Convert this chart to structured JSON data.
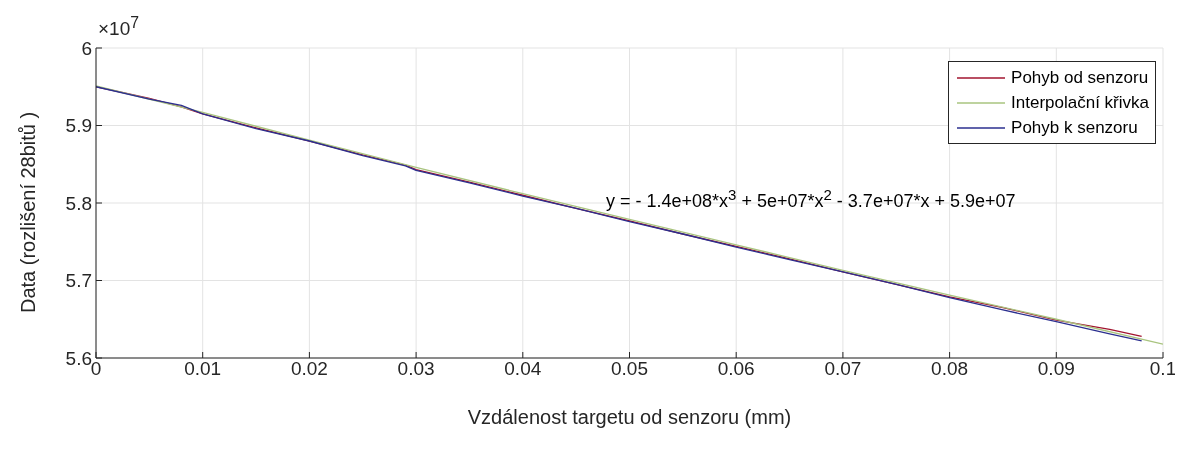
{
  "chart_data": {
    "type": "line",
    "xlabel": "Vzdálenost targetu od senzoru (mm)",
    "ylabel": "Data (rozlišení 28bitů )",
    "annotations": [
      "×10$^{7}$",
      "y = - 1.4e+08*x$^{3}$ + 5e+07*x$^{2}$ - 3.7e+07*x + 5.9e+07"
    ],
    "series": [
      {
        "name": "Pohyb od senzoru",
        "color": "#a2142f",
        "x": [
          0,
          0.005,
          0.008,
          0.01,
          0.015,
          0.02,
          0.025,
          0.029,
          0.03,
          0.035,
          0.04,
          0.045,
          0.05,
          0.055,
          0.06,
          0.065,
          0.07,
          0.075,
          0.08,
          0.085,
          0.09,
          0.095,
          0.098
        ],
        "values": [
          5.95,
          5.935,
          5.924,
          5.915,
          5.897,
          5.88,
          5.862,
          5.849,
          5.843,
          5.827,
          5.81,
          5.793,
          5.777,
          5.76,
          5.744,
          5.728,
          5.711,
          5.695,
          5.679,
          5.665,
          5.649,
          5.637,
          5.628
        ]
      },
      {
        "name": "Interpolační křivka",
        "color": "#a9c47f",
        "x": [
          0,
          0.01,
          0.02,
          0.03,
          0.04,
          0.05,
          0.06,
          0.07,
          0.08,
          0.09,
          0.1
        ],
        "values": [
          5.951,
          5.917,
          5.881,
          5.846,
          5.812,
          5.779,
          5.746,
          5.713,
          5.681,
          5.65,
          5.618
        ]
      },
      {
        "name": "Pohyb k senzoru",
        "color": "#2b2f8f",
        "x": [
          0,
          0.005,
          0.008,
          0.01,
          0.015,
          0.02,
          0.025,
          0.029,
          0.03,
          0.035,
          0.04,
          0.045,
          0.05,
          0.055,
          0.06,
          0.065,
          0.07,
          0.075,
          0.08,
          0.085,
          0.09,
          0.095,
          0.098
        ],
        "values": [
          5.95,
          5.934,
          5.926,
          5.915,
          5.896,
          5.88,
          5.861,
          5.848,
          5.842,
          5.826,
          5.809,
          5.793,
          5.776,
          5.76,
          5.743,
          5.727,
          5.711,
          5.695,
          5.678,
          5.662,
          5.647,
          5.631,
          5.622
        ]
      }
    ],
    "xlim": [
      0,
      0.1
    ],
    "xticks": [
      0,
      0.01,
      0.02,
      0.03,
      0.04,
      0.05,
      0.06,
      0.07,
      0.08,
      0.09,
      0.1
    ],
    "ylim": [
      5.6,
      6
    ],
    "yticks": [
      5.6,
      5.7,
      5.8,
      5.9,
      6
    ],
    "grid": true,
    "legend": "top right",
    "marker": "none",
    "line_style": "solid"
  }
}
